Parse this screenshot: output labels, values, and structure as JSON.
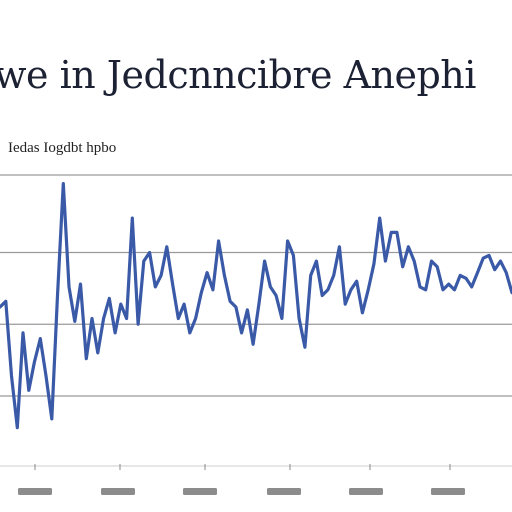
{
  "chart_data": {
    "type": "line",
    "title": "we in Jedcnncibre Anephi",
    "subtitle": "Iedas Iogdbt hpbo",
    "x_tick_labels": [
      "",
      "",
      "",
      "",
      "",
      "",
      ""
    ],
    "grid": true,
    "legend": "none",
    "ylim": [
      0,
      100
    ],
    "series": [
      {
        "color": "#3a5aa8",
        "values": [
          54,
          56,
          30,
          12,
          45,
          25,
          35,
          43,
          30,
          15,
          58,
          97,
          61,
          49,
          62,
          36,
          50,
          38,
          50,
          57,
          45,
          55,
          50,
          85,
          48,
          70,
          73,
          61,
          65,
          75,
          62,
          50,
          55,
          45,
          50,
          59,
          66,
          60,
          77,
          65,
          56,
          54,
          45,
          53,
          41,
          55,
          70,
          61,
          58,
          50,
          77,
          72,
          50,
          40,
          65,
          70,
          58,
          60,
          65,
          75,
          55,
          60,
          63,
          52,
          60,
          69,
          85,
          70,
          80,
          80,
          68,
          75,
          70,
          61,
          60,
          70,
          68,
          60,
          62,
          60,
          65,
          64,
          61,
          66,
          71,
          72,
          67,
          70,
          66,
          59
        ]
      }
    ]
  },
  "colors": {
    "line": "#3a5aa8",
    "grid": "#9a9a9a",
    "text": "#1c2233"
  }
}
